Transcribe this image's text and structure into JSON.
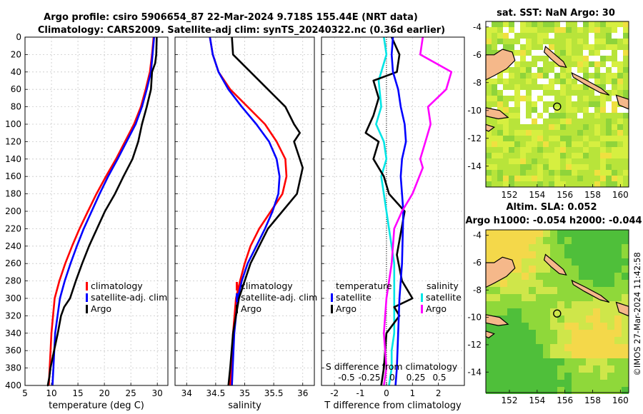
{
  "titles": {
    "line1": "Argo profile: csiro 5906654_87 22-Mar-2024 9.718S 155.44E (NRT data)",
    "line2": "Climatology: CARS2009. Satellite-adj clim: synTS_20240322.nc (0.36d earlier)",
    "sst": "sat. SST: NaN Argo: 30",
    "sla1": "Altim. SLA: 0.052",
    "sla2": "Argo h1000: -0.054 h2000: -0.044"
  },
  "credit": "©IMOS 27-Mar-2024 11:42:58",
  "colors": {
    "clim": "#ff0000",
    "sat": "#0000ff",
    "argo": "#000000",
    "t_sat": "#00e5e5",
    "s_sat": "#ff00ff",
    "coast": "#f5b88a"
  },
  "chart_data": [
    {
      "type": "line",
      "name": "temperature",
      "xlabel": "temperature (deg C)",
      "ylabel": "",
      "xlim": [
        5,
        32
      ],
      "ylim": [
        0,
        400
      ],
      "xticks": [
        "5",
        "10",
        "15",
        "20",
        "25",
        "30"
      ],
      "yticks": [
        "0",
        "20",
        "40",
        "60",
        "80",
        "100",
        "120",
        "140",
        "160",
        "180",
        "200",
        "220",
        "240",
        "260",
        "280",
        "300",
        "320",
        "340",
        "360",
        "380",
        "400"
      ],
      "legend": [
        "climatology",
        "satellite-adj. clim",
        "Argo"
      ],
      "series": [
        {
          "name": "climatology",
          "color": "#ff0000",
          "x": [
            29.3,
            29.0,
            28.6,
            27.8,
            26.9,
            25.6,
            23.9,
            22.2,
            20.3,
            18.5,
            16.9,
            15.3,
            13.9,
            12.6,
            11.5,
            10.6,
            10.0,
            9.5
          ],
          "y": [
            0,
            20,
            40,
            60,
            80,
            100,
            120,
            140,
            160,
            180,
            200,
            220,
            240,
            260,
            280,
            300,
            340,
            400
          ]
        },
        {
          "name": "satellite-adj. clim",
          "color": "#0000ff",
          "x": [
            29.4,
            29.1,
            28.8,
            28.0,
            27.1,
            25.9,
            24.2,
            22.5,
            20.7,
            19.1,
            17.6,
            16.1,
            14.8,
            13.6,
            12.5,
            11.6,
            10.7,
            10.2
          ],
          "y": [
            0,
            20,
            40,
            60,
            80,
            100,
            120,
            140,
            160,
            180,
            200,
            220,
            240,
            260,
            280,
            300,
            340,
            400
          ]
        },
        {
          "name": "Argo",
          "color": "#000000",
          "x": [
            29.9,
            29.8,
            29.6,
            29.0,
            28.8,
            28.0,
            27.1,
            26.4,
            25.3,
            23.6,
            22.0,
            20.1,
            18.6,
            17.1,
            15.8,
            14.6,
            13.5,
            12.4,
            11.8,
            11.2,
            10.5,
            9.8,
            9.6,
            9.3,
            9.2
          ],
          "y": [
            0,
            20,
            30,
            40,
            60,
            80,
            100,
            120,
            140,
            160,
            180,
            200,
            220,
            240,
            260,
            280,
            300,
            310,
            320,
            340,
            360,
            380,
            390,
            400,
            400
          ]
        }
      ]
    },
    {
      "type": "line",
      "name": "salinity",
      "xlabel": "salinity",
      "xlim": [
        33.8,
        36.2
      ],
      "ylim": [
        0,
        400
      ],
      "xticks": [
        "34",
        "34.5",
        "35",
        "35.5",
        "36"
      ],
      "legend": [
        "climatology",
        "satellite-adj. clim",
        "Argo"
      ],
      "series": [
        {
          "name": "climatology",
          "color": "#ff0000",
          "x": [
            34.4,
            34.45,
            34.55,
            34.75,
            35.05,
            35.35,
            35.55,
            35.7,
            35.72,
            35.65,
            35.45,
            35.25,
            35.1,
            35.0,
            34.92,
            34.85,
            34.8,
            34.75
          ],
          "y": [
            0,
            20,
            40,
            60,
            80,
            100,
            120,
            140,
            160,
            180,
            200,
            220,
            240,
            260,
            280,
            300,
            340,
            400
          ]
        },
        {
          "name": "satellite-adj. clim",
          "color": "#0000ff",
          "x": [
            34.4,
            34.45,
            34.55,
            34.72,
            34.95,
            35.2,
            35.42,
            35.55,
            35.6,
            35.58,
            35.48,
            35.35,
            35.2,
            35.05,
            34.95,
            34.88,
            34.82,
            34.78
          ],
          "y": [
            0,
            20,
            40,
            60,
            80,
            100,
            120,
            140,
            160,
            180,
            200,
            220,
            240,
            260,
            280,
            300,
            340,
            400
          ]
        },
        {
          "name": "Argo",
          "color": "#000000",
          "x": [
            34.78,
            34.8,
            35.1,
            35.4,
            35.7,
            35.85,
            35.95,
            35.85,
            36.0,
            35.9,
            35.65,
            35.4,
            35.25,
            35.1,
            35.0,
            34.9,
            34.8,
            34.75,
            34.72
          ],
          "y": [
            0,
            20,
            40,
            60,
            80,
            100,
            110,
            120,
            150,
            180,
            200,
            220,
            240,
            260,
            280,
            300,
            340,
            380,
            400
          ]
        }
      ]
    },
    {
      "type": "line",
      "name": "differences",
      "xlabel": "T difference from climatology",
      "top_axis_label": "S difference from climatology",
      "xlim": [
        -2.5,
        3.0
      ],
      "ylim": [
        0,
        400
      ],
      "xticks": [
        "-2",
        "-1",
        "0",
        "1",
        "2"
      ],
      "s_ticks": [
        "-0.5",
        "-0.25",
        "0",
        "0.25",
        "0.5"
      ],
      "legend_temperature": {
        "title": "temperature",
        "items": [
          "satellite",
          "Argo"
        ]
      },
      "legend_salinity": {
        "title": "salinity",
        "items": [
          "satellite",
          "Argo"
        ]
      },
      "series": [
        {
          "name": "temperature satellite",
          "color": "#00e5e5",
          "x": [
            -0.1,
            0.0,
            -0.3,
            -0.2,
            -0.4,
            -0.1,
            0.0,
            -0.2,
            -0.1,
            0.0,
            0.1,
            0.2,
            0.3,
            0.3,
            0.3,
            0.3,
            0.3,
            0.2,
            0.2,
            0.1
          ],
          "y": [
            0,
            20,
            50,
            80,
            100,
            120,
            140,
            160,
            180,
            200,
            220,
            240,
            260,
            280,
            300,
            320,
            340,
            360,
            380,
            400
          ]
        },
        {
          "name": "temperature Argo",
          "color": "#000000",
          "x": [
            0.2,
            0.5,
            0.4,
            -0.5,
            -0.3,
            -0.5,
            -0.8,
            -0.3,
            -0.5,
            -0.1,
            0.1,
            0.7,
            0.4,
            0.6,
            1.0,
            0.3,
            0.5,
            0.0,
            -0.1,
            -0.2
          ],
          "y": [
            0,
            20,
            40,
            50,
            70,
            90,
            110,
            120,
            140,
            160,
            180,
            200,
            250,
            280,
            300,
            310,
            320,
            340,
            380,
            400
          ]
        },
        {
          "name": "salinity satellite",
          "color": "#0000ff",
          "x": [
            0.25,
            0.2,
            0.25,
            0.45,
            0.55,
            0.7,
            0.75,
            0.6,
            0.55,
            0.65,
            0.6,
            0.5,
            0.45,
            0.4,
            0.35
          ],
          "y": [
            0,
            20,
            40,
            60,
            80,
            100,
            120,
            140,
            160,
            200,
            260,
            300,
            340,
            380,
            400
          ]
        },
        {
          "name": "salinity Argo",
          "color": "#ff00ff",
          "x": [
            1.4,
            1.3,
            2.5,
            2.3,
            1.6,
            1.7,
            1.5,
            1.3,
            1.4,
            1.0,
            0.6,
            0.3,
            0.2,
            0.0,
            -0.1,
            0.0,
            -0.1
          ],
          "y": [
            0,
            20,
            40,
            60,
            80,
            100,
            120,
            140,
            150,
            180,
            200,
            220,
            260,
            300,
            340,
            380,
            400
          ]
        }
      ]
    },
    {
      "type": "heatmap",
      "name": "sat-sst-map",
      "title": "sat. SST: NaN Argo: 30",
      "xlim": [
        150.3,
        160.6
      ],
      "ylim": [
        -15.5,
        -3.6
      ],
      "xticks": [
        "152",
        "154",
        "156",
        "158",
        "160"
      ],
      "yticks": [
        "-4",
        "-6",
        "-8",
        "-10",
        "-12",
        "-14"
      ],
      "argo_position": [
        155.44,
        -9.718
      ]
    },
    {
      "type": "heatmap",
      "name": "altim-sla-map",
      "title": "Altim. SLA: 0.052",
      "xlim": [
        150.3,
        160.6
      ],
      "ylim": [
        -15.5,
        -3.6
      ],
      "xticks": [
        "152",
        "154",
        "156",
        "158",
        "160"
      ],
      "yticks": [
        "-4",
        "-6",
        "-8",
        "-10",
        "-12",
        "-14"
      ],
      "argo_position": [
        155.44,
        -9.718
      ]
    }
  ]
}
